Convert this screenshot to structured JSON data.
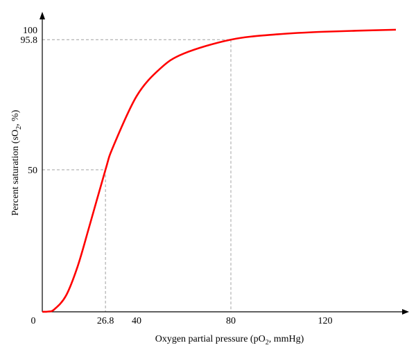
{
  "chart_data": {
    "type": "line",
    "title": "",
    "xlabel": "Oxygen partial pressure (pO2, mmHg)",
    "xlabel_parts": {
      "pre": "Oxygen partial pressure (pO",
      "sub": "2",
      "post": ", mmHg)"
    },
    "ylabel": "Percent saturation (sO2, %)",
    "ylabel_parts": {
      "pre": "Percent saturation (sO",
      "sub": "2",
      "post": ", %)"
    },
    "xlim": [
      0,
      150
    ],
    "ylim": [
      0,
      100
    ],
    "x_ticks": [
      {
        "value": 0,
        "label": "0"
      },
      {
        "value": 26.8,
        "label": "26.8"
      },
      {
        "value": 40,
        "label": "40"
      },
      {
        "value": 80,
        "label": "80"
      },
      {
        "value": 120,
        "label": "120"
      }
    ],
    "y_ticks": [
      {
        "value": 50,
        "label": "50"
      },
      {
        "value": 95.8,
        "label": "95.8"
      },
      {
        "value": 100,
        "label": "100"
      }
    ],
    "grid": false,
    "reference_points": [
      {
        "x": 26.8,
        "y": 50
      },
      {
        "x": 80,
        "y": 95.8
      }
    ],
    "series": [
      {
        "color": "#ff0000",
        "x": [
          0,
          2.5,
          5,
          10,
          15,
          20,
          26.8,
          30,
          40,
          50,
          60,
          80,
          100,
          120,
          150
        ],
        "y": [
          0,
          0.1,
          0.8,
          5.6,
          16.0,
          30.2,
          50,
          58.0,
          75.9,
          85.6,
          90.9,
          95.8,
          97.7,
          98.6,
          99.3
        ]
      }
    ],
    "axis_color": "#000000",
    "reference_line_color": "#a0a0a0"
  }
}
